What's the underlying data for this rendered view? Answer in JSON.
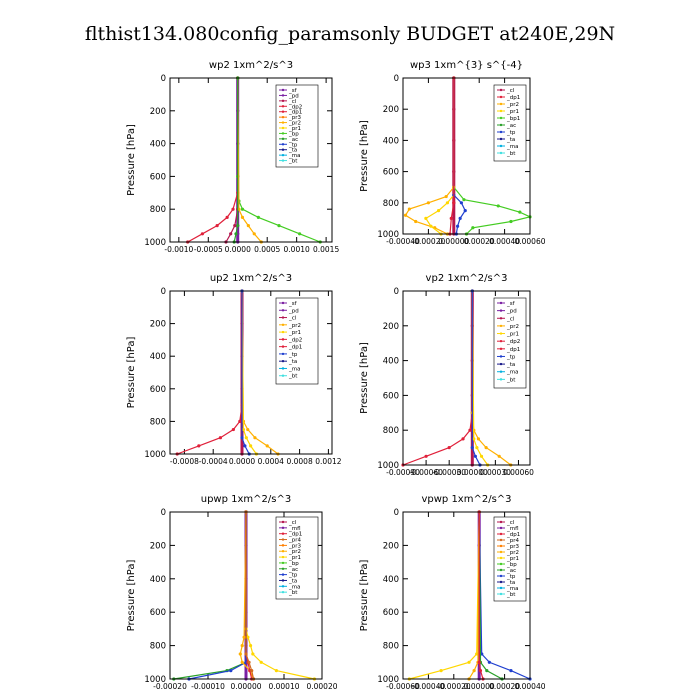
{
  "title": "flthist134.080config_paramsonly  BUDGET at240E,29N",
  "colors": {
    "sf": "#7a1fa2",
    "pd": "#7a1fa2",
    "cl": "#b5164f",
    "dp2": "#e0203a",
    "dp1": "#e0203a",
    "pr3": "#ff7f00",
    "pr2": "#ffb000",
    "pr1": "#ffd700",
    "bp": "#44cc22",
    "bp1": "#44cc22",
    "ac": "#2aa02a",
    "tp": "#1f3fcf",
    "ta": "#1a1a8a",
    "ma": "#00b0e0",
    "bt": "#40e0e0",
    "mfl": "#7a1fa2",
    "pr4": "#d2691e"
  },
  "chart_data": [
    {
      "type": "line",
      "title": "wp2   1xm^2/s^3",
      "ylabel": "Pressure  [hPa]",
      "ylim": [
        1000,
        0
      ],
      "yticks": [
        0,
        200,
        400,
        600,
        800,
        1000
      ],
      "xlim": [
        -0.00115,
        0.0016
      ],
      "xtick_labels": [
        "-0.0010",
        "-0.0005",
        "0.0000",
        "0.0005",
        "0.0010",
        "0.0015"
      ],
      "xtick_values": [
        -0.001,
        -0.0005,
        0,
        0.0005,
        0.001,
        0.0015
      ],
      "legend": [
        "_sf",
        "_pd",
        "_cl",
        "_dp2",
        "_dp1",
        "_pr3",
        "_pr2",
        "_pr1",
        "_bp",
        "_ac",
        "_tp",
        "_ta",
        "_ma",
        "_bt"
      ],
      "series": [
        {
          "key": "sf",
          "y": [
            0,
            200,
            400,
            600,
            800,
            900,
            950,
            1000
          ],
          "x": [
            0,
            0,
            0,
            0,
            0,
            0,
            0,
            0
          ]
        },
        {
          "key": "bp",
          "y": [
            0,
            600,
            750,
            800,
            850,
            900,
            950,
            1000
          ],
          "x": [
            0,
            0,
            2e-05,
            8e-05,
            0.00035,
            0.0007,
            0.00105,
            0.0014
          ]
        },
        {
          "key": "dp1",
          "y": [
            0,
            700,
            800,
            850,
            900,
            950,
            1000
          ],
          "x": [
            0,
            0,
            -8e-05,
            -0.00018,
            -0.00035,
            -0.0006,
            -0.00085
          ]
        },
        {
          "key": "cl",
          "y": [
            0,
            800,
            900,
            950,
            1000
          ],
          "x": [
            0,
            0,
            -5e-05,
            -0.00012,
            -0.0002
          ]
        },
        {
          "key": "pr2",
          "y": [
            0,
            800,
            850,
            900,
            950,
            1000
          ],
          "x": [
            0,
            2e-05,
            8e-05,
            0.00018,
            0.00028,
            0.0004
          ]
        },
        {
          "key": "ac",
          "y": [
            0,
            900,
            950,
            1000
          ],
          "x": [
            0,
            0,
            -3e-05,
            -6e-05
          ]
        }
      ]
    },
    {
      "type": "line",
      "title": "wp3   1xm^{3} s^{-4}",
      "ylabel": "Pressure  [hPa]",
      "ylim": [
        1000,
        0
      ],
      "yticks": [
        0,
        200,
        400,
        600,
        800,
        1000
      ],
      "xlim": [
        -0.0004,
        0.0006
      ],
      "xtick_labels": [
        "-0.00040",
        "-0.00020",
        "0.00000",
        "0.00020",
        "0.00040",
        "0.00060"
      ],
      "xtick_values": [
        -0.0004,
        -0.0002,
        0,
        0.0002,
        0.0004,
        0.0006
      ],
      "legend": [
        "_cl",
        "_dp1",
        "_pr2",
        "_pr1",
        "_bp1",
        "_ac",
        "_tp",
        "_ta",
        "_ma",
        "_bt"
      ],
      "series": [
        {
          "key": "cl",
          "y": [
            0,
            200,
            400,
            600,
            800,
            1000
          ],
          "x": [
            0,
            0,
            0,
            0,
            0,
            0
          ]
        },
        {
          "key": "bp1",
          "y": [
            0,
            700,
            780,
            820,
            860,
            890,
            920,
            960,
            1000
          ],
          "x": [
            0,
            0,
            8e-05,
            0.00035,
            0.00052,
            0.0006,
            0.00045,
            0.00015,
            0.0001
          ]
        },
        {
          "key": "pr2",
          "y": [
            0,
            700,
            760,
            800,
            840,
            880,
            920,
            960,
            1000
          ],
          "x": [
            0,
            0,
            -6e-05,
            -0.0002,
            -0.00035,
            -0.00038,
            -0.0003,
            -0.00015,
            -5e-05
          ]
        },
        {
          "key": "pr1",
          "y": [
            0,
            750,
            800,
            850,
            900,
            950,
            1000
          ],
          "x": [
            0,
            0,
            -5e-05,
            -0.00012,
            -0.00022,
            -0.00018,
            -0.0001
          ]
        },
        {
          "key": "tp",
          "y": [
            0,
            750,
            800,
            850,
            900,
            950,
            1000
          ],
          "x": [
            0,
            0,
            6e-05,
            9e-05,
            5e-05,
            3e-05,
            2e-05
          ]
        },
        {
          "key": "dp1",
          "y": [
            0,
            800,
            900,
            1000
          ],
          "x": [
            0,
            0,
            -2e-05,
            -3e-05
          ]
        }
      ]
    },
    {
      "type": "line",
      "title": "up2   1xm^2/s^3",
      "ylabel": "Pressure  [hPa]",
      "ylim": [
        1000,
        0
      ],
      "yticks": [
        0,
        200,
        400,
        600,
        800,
        1000
      ],
      "xlim": [
        -0.001,
        0.00125
      ],
      "xtick_labels": [
        "-0.0008",
        "-0.0004",
        "0.0000",
        "0.0004",
        "0.0008",
        "0.0012"
      ],
      "xtick_values": [
        -0.0008,
        -0.0004,
        0,
        0.0004,
        0.0008,
        0.0012
      ],
      "legend": [
        "_sf",
        "_pd",
        "_cl",
        "_pr2",
        "_pr1",
        "_dp2",
        "_dp1",
        "_tp",
        "_ta",
        "_ma",
        "_bt"
      ],
      "series": [
        {
          "key": "cl",
          "y": [
            0,
            200,
            400,
            600,
            800,
            1000
          ],
          "x": [
            0,
            0,
            0,
            0,
            0,
            0
          ]
        },
        {
          "key": "dp2",
          "y": [
            0,
            700,
            800,
            850,
            900,
            950,
            1000
          ],
          "x": [
            0,
            0,
            -3e-05,
            -0.00012,
            -0.0003,
            -0.0006,
            -0.0009
          ]
        },
        {
          "key": "pr2",
          "y": [
            0,
            800,
            850,
            900,
            950,
            1000
          ],
          "x": [
            0,
            2e-05,
            8e-05,
            0.00018,
            0.00035,
            0.0005
          ]
        },
        {
          "key": "pr1",
          "y": [
            0,
            850,
            900,
            950,
            1000
          ],
          "x": [
            0,
            2e-05,
            6e-05,
            0.00012,
            0.0002
          ]
        },
        {
          "key": "tp",
          "y": [
            0,
            900,
            950,
            1000
          ],
          "x": [
            0,
            0,
            4e-05,
            0.0001
          ]
        }
      ]
    },
    {
      "type": "line",
      "title": "vp2   1xm^2/s^3",
      "ylabel": "Pressure  [hPa]",
      "ylim": [
        1000,
        0
      ],
      "yticks": [
        0,
        200,
        400,
        600,
        800,
        1000
      ],
      "xlim": [
        -0.0009,
        0.00075
      ],
      "xtick_labels": [
        "-0.00090",
        "-0.00060",
        "-0.00030",
        "0.00000",
        "0.00030",
        "0.00060"
      ],
      "xtick_values": [
        -0.0009,
        -0.0006,
        -0.0003,
        0,
        0.0003,
        0.0006
      ],
      "legend": [
        "_sf",
        "_pd",
        "_cl",
        "_pr2",
        "_pr1",
        "_dp2",
        "_dp1",
        "_tp",
        "_ta",
        "_ma",
        "_bt"
      ],
      "series": [
        {
          "key": "cl",
          "y": [
            0,
            200,
            400,
            600,
            800,
            1000
          ],
          "x": [
            0,
            0,
            0,
            0,
            0,
            0
          ]
        },
        {
          "key": "dp2",
          "y": [
            0,
            700,
            800,
            850,
            900,
            950,
            1000
          ],
          "x": [
            0,
            0,
            -3e-05,
            -0.00012,
            -0.0003,
            -0.0006,
            -0.0009
          ]
        },
        {
          "key": "pr2",
          "y": [
            0,
            700,
            800,
            850,
            900,
            950,
            1000
          ],
          "x": [
            0,
            0,
            2e-05,
            8e-05,
            0.00018,
            0.00035,
            0.0005
          ]
        },
        {
          "key": "pr1",
          "y": [
            0,
            850,
            900,
            950,
            1000
          ],
          "x": [
            0,
            2e-05,
            6e-05,
            0.00012,
            0.0002
          ]
        },
        {
          "key": "tp",
          "y": [
            0,
            900,
            950,
            1000
          ],
          "x": [
            0,
            0,
            4e-05,
            0.0001
          ]
        }
      ]
    },
    {
      "type": "line",
      "title": "upwp   1xm^2/s^3",
      "ylabel": "Pressure  [hPa]",
      "ylim": [
        1000,
        0
      ],
      "yticks": [
        0,
        200,
        400,
        600,
        800,
        1000
      ],
      "xlim": [
        -0.0002,
        0.0002
      ],
      "xtick_labels": [
        "-0.00020",
        "-0.00010",
        "0.00000",
        "0.00010",
        "0.00020"
      ],
      "xtick_values": [
        -0.0002,
        -0.0001,
        0,
        0.0001,
        0.0002
      ],
      "legend": [
        "_cl",
        "_mfl",
        "_dp1",
        "_pr4",
        "_pr3",
        "_pr2",
        "_pr1",
        "_bp",
        "_ac",
        "_tp",
        "_ta",
        "_ma",
        "_bt"
      ],
      "series": [
        {
          "key": "mfl",
          "y": [
            0,
            200,
            400,
            600,
            800,
            1000
          ],
          "x": [
            0,
            0,
            0,
            0,
            0,
            0
          ]
        },
        {
          "key": "pr1",
          "y": [
            0,
            700,
            750,
            800,
            850,
            900,
            950,
            1000
          ],
          "x": [
            0,
            0,
            5e-06,
            1.2e-05,
            1.8e-05,
            4e-05,
            8e-05,
            0.00018
          ]
        },
        {
          "key": "ac",
          "y": [
            0,
            900,
            950,
            1000
          ],
          "x": [
            0,
            0,
            -5e-05,
            -0.00019
          ]
        },
        {
          "key": "tp",
          "y": [
            0,
            900,
            950,
            1000
          ],
          "x": [
            0,
            0,
            -4e-05,
            -0.00015
          ]
        },
        {
          "key": "pr2",
          "y": [
            0,
            750,
            800,
            850,
            900,
            950,
            1000
          ],
          "x": [
            0,
            -5e-06,
            -1e-05,
            -1.5e-05,
            -1e-05,
            1e-05,
            2e-05
          ]
        },
        {
          "key": "dp1",
          "y": [
            0,
            850,
            900,
            950,
            1000
          ],
          "x": [
            0,
            0,
            5e-06,
            1e-05,
            1.5e-05
          ]
        },
        {
          "key": "pr4",
          "y": [
            0,
            850,
            900,
            950,
            1000
          ],
          "x": [
            0,
            0,
            8e-06,
            1.5e-05,
            2e-05
          ]
        }
      ]
    },
    {
      "type": "line",
      "title": "vpwp   1xm^2/s^3",
      "ylabel": "Pressure  [hPa]",
      "ylim": [
        1000,
        0
      ],
      "yticks": [
        0,
        200,
        400,
        600,
        800,
        1000
      ],
      "xlim": [
        -0.0006,
        0.0004
      ],
      "xtick_labels": [
        "-0.00060",
        "-0.00040",
        "-0.00020",
        "0.00000",
        "0.00020",
        "0.00040"
      ],
      "xtick_values": [
        -0.0006,
        -0.0004,
        -0.0002,
        0,
        0.0002,
        0.0004
      ],
      "legend": [
        "_cl",
        "_mfl",
        "_dp1",
        "_pr4",
        "_pr3",
        "_pr2",
        "_pr1",
        "_bp",
        "_ac",
        "_tp",
        "_ta",
        "_ma",
        "_bt"
      ],
      "series": [
        {
          "key": "mfl",
          "y": [
            0,
            200,
            400,
            600,
            800,
            1000
          ],
          "x": [
            0,
            0,
            0,
            0,
            0,
            0
          ]
        },
        {
          "key": "pr1",
          "y": [
            0,
            850,
            900,
            950,
            1000
          ],
          "x": [
            0,
            -2e-05,
            -8e-05,
            -0.0003,
            -0.00055
          ]
        },
        {
          "key": "tp",
          "y": [
            0,
            850,
            900,
            950,
            1000
          ],
          "x": [
            0,
            2e-05,
            8e-05,
            0.00025,
            0.0004
          ]
        },
        {
          "key": "ac",
          "y": [
            0,
            900,
            950,
            1000
          ],
          "x": [
            0,
            1e-05,
            6e-05,
            0.00018
          ]
        },
        {
          "key": "pr2",
          "y": [
            0,
            900,
            950,
            1000
          ],
          "x": [
            0,
            -1e-05,
            -4e-05,
            -8e-05
          ]
        },
        {
          "key": "dp1",
          "y": [
            0,
            900,
            950,
            1000
          ],
          "x": [
            0,
            0,
            1e-05,
            3e-05
          ]
        }
      ]
    }
  ]
}
